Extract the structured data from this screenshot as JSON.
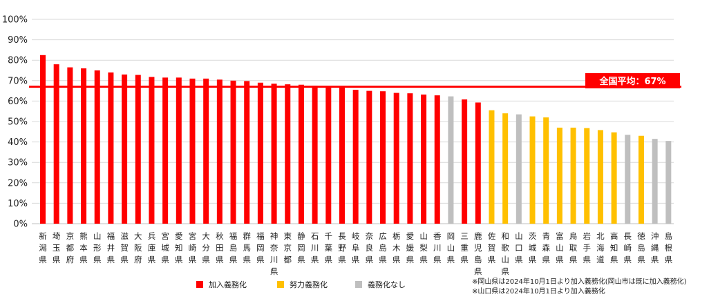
{
  "chart_data": {
    "type": "bar",
    "ylim": [
      0,
      100
    ],
    "y_ticks": [
      "0%",
      "10%",
      "20%",
      "30%",
      "40%",
      "50%",
      "60%",
      "70%",
      "80%",
      "90%",
      "100%"
    ],
    "grid": true,
    "categories": [
      "新潟県",
      "埼玉県",
      "京都府",
      "熊本県",
      "山形県",
      "福井県",
      "滋賀県",
      "大阪府",
      "兵庫県",
      "宮城県",
      "愛知県",
      "宮崎県",
      "大分県",
      "秋田県",
      "福島県",
      "群馬県",
      "福岡県",
      "神奈川県",
      "東京都",
      "静岡県",
      "石川県",
      "千葉県",
      "長野県",
      "岐阜県",
      "奈良県",
      "広島県",
      "栃木県",
      "愛媛県",
      "山梨県",
      "香川県",
      "岡山県",
      "三重県",
      "鹿児島県",
      "佐賀県",
      "和歌山県",
      "山口県",
      "茨城県",
      "青森県",
      "富山県",
      "鳥取県",
      "岩手県",
      "北海道",
      "高知県",
      "長崎県",
      "徳島県",
      "沖縄県",
      "島根県"
    ],
    "values": [
      82.5,
      78,
      76.5,
      76,
      75,
      74,
      73,
      72.8,
      71.8,
      71.5,
      71.5,
      71,
      71,
      70.5,
      70,
      69.8,
      69,
      68.5,
      68.2,
      68,
      67.5,
      67.3,
      67,
      65.5,
      65,
      64.8,
      64,
      63.8,
      63.2,
      62.8,
      62.3,
      60.8,
      59.3,
      55.5,
      54,
      53.5,
      52.5,
      52,
      47,
      47,
      46.8,
      45.8,
      44.7,
      43.5,
      43,
      41.5,
      40.5
    ],
    "status": [
      "m",
      "m",
      "m",
      "m",
      "m",
      "m",
      "m",
      "m",
      "m",
      "m",
      "m",
      "m",
      "m",
      "m",
      "m",
      "m",
      "m",
      "m",
      "m",
      "m",
      "m",
      "m",
      "m",
      "m",
      "m",
      "m",
      "m",
      "m",
      "m",
      "m",
      "n",
      "m",
      "m",
      "e",
      "e",
      "n",
      "e",
      "e",
      "e",
      "e",
      "e",
      "e",
      "e",
      "n",
      "e",
      "n",
      "n"
    ],
    "average": {
      "value": 67,
      "label": "全国平均：67%"
    },
    "legend": [
      {
        "key": "m",
        "label": "加入義務化",
        "color": "#ff0000"
      },
      {
        "key": "e",
        "label": "努力義務化",
        "color": "#ffc000"
      },
      {
        "key": "n",
        "label": "義務化なし",
        "color": "#bfbfbf"
      }
    ],
    "notes": [
      "※岡山県は2024年10月1日より加入義務化(岡山市は既に加入義務化)",
      "※山口県は2024年10月1日より加入義務化"
    ]
  }
}
